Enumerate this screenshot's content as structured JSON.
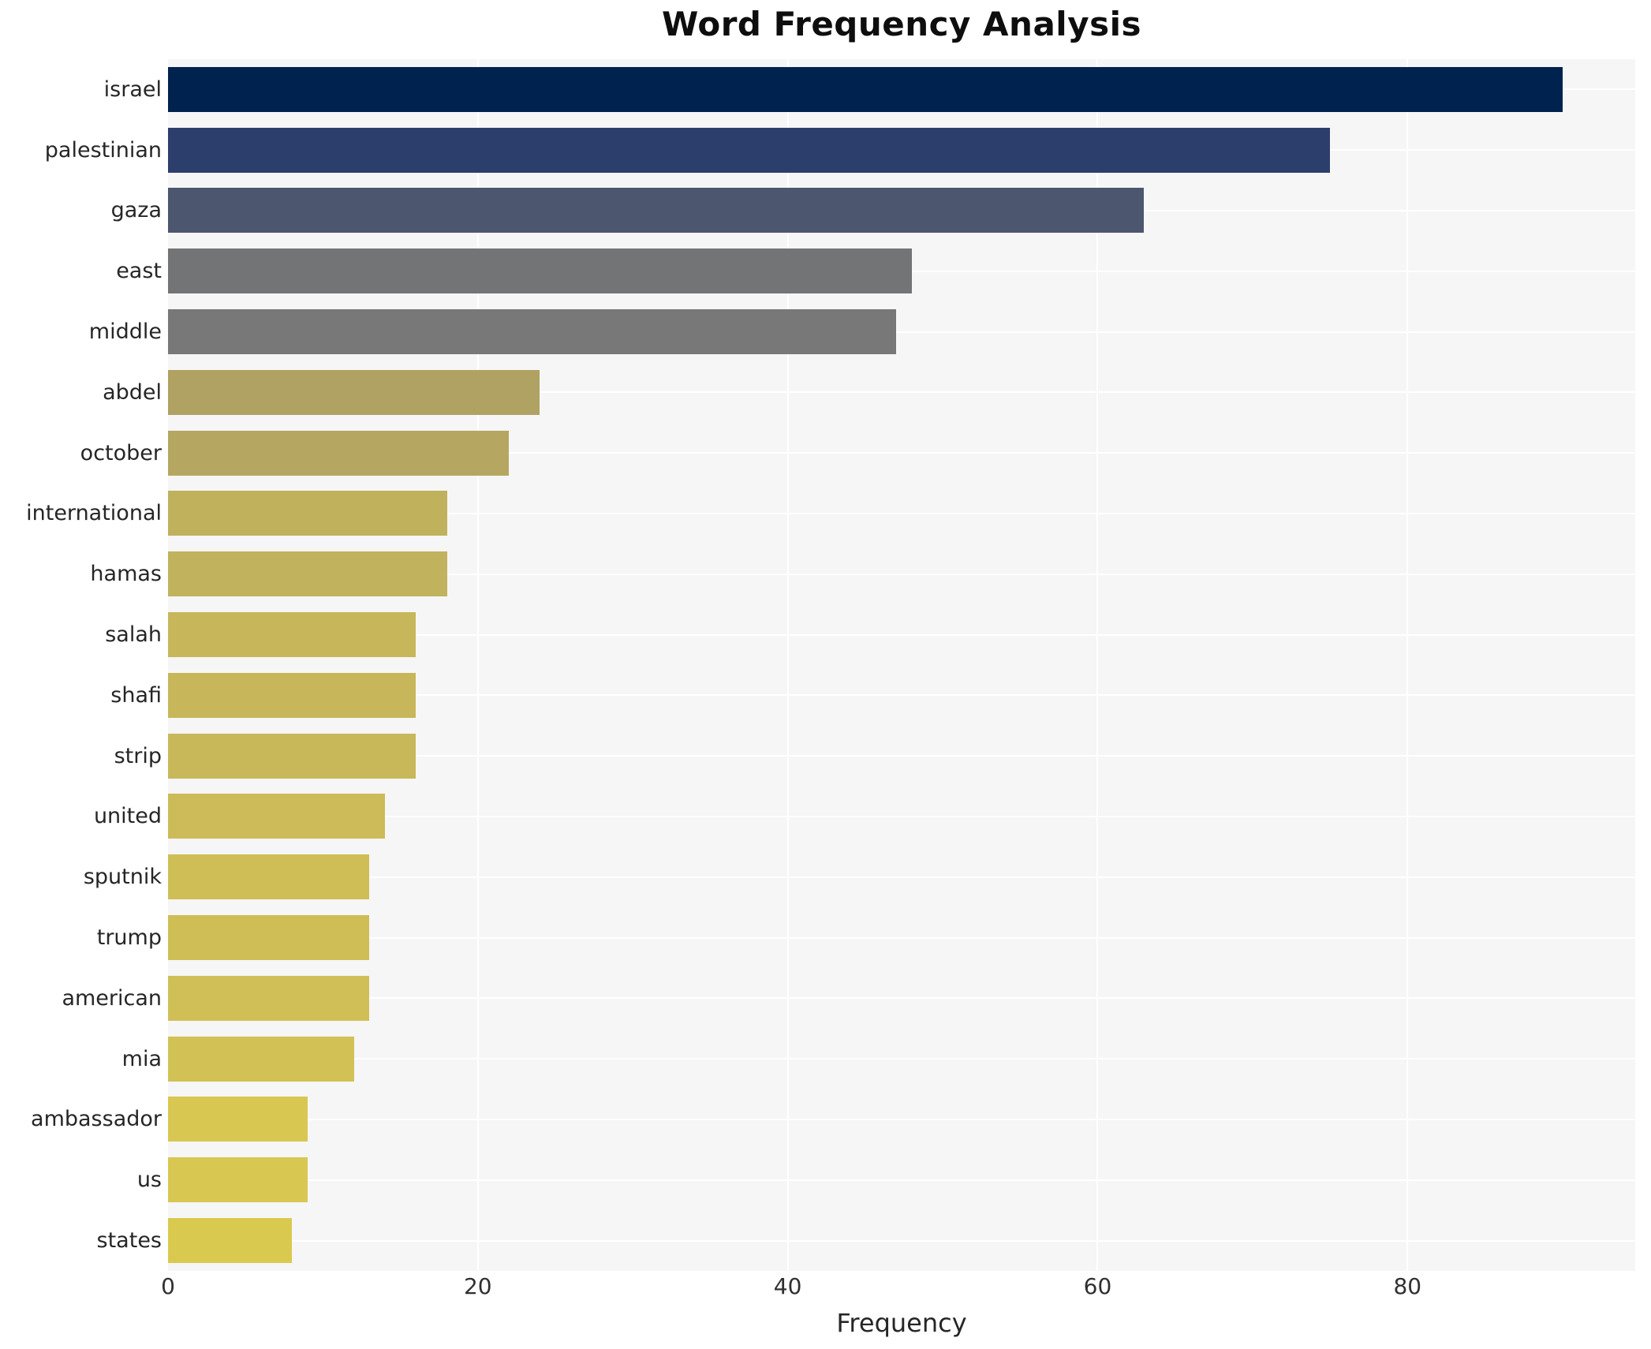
{
  "title": "Word Frequency Analysis",
  "chart_data": {
    "type": "bar",
    "orientation": "horizontal",
    "title": "Word Frequency Analysis",
    "xlabel": "Frequency",
    "ylabel": "",
    "xlim": [
      0,
      94.7
    ],
    "xticks": [
      0,
      20,
      40,
      60,
      80
    ],
    "grid": true,
    "legend": false,
    "colormap": "cividis",
    "plot_bg_color": "#f6f6f7",
    "gridline_color": "#ffffff",
    "text_color": "#262626",
    "categories": [
      "israel",
      "palestinian",
      "gaza",
      "east",
      "middle",
      "abdel",
      "october",
      "international",
      "hamas",
      "salah",
      "shafi",
      "strip",
      "united",
      "sputnik",
      "trump",
      "american",
      "mia",
      "ambassador",
      "us",
      "states"
    ],
    "values": [
      90,
      75,
      63,
      48,
      47,
      24,
      22,
      18,
      18,
      16,
      16,
      16,
      14,
      13,
      13,
      13,
      12,
      9,
      9,
      8
    ],
    "bar_colors": [
      "#00224e",
      "#2c3e6c",
      "#4c566f",
      "#737476",
      "#777877",
      "#b0a262",
      "#b5a761",
      "#c0b15d",
      "#c1b25d",
      "#c7b75a",
      "#c7b75a",
      "#c8b85a",
      "#ccbb58",
      "#cfbe56",
      "#cfbe56",
      "#d0bf56",
      "#d2c155",
      "#d8c751",
      "#d8c751",
      "#dac94f"
    ]
  }
}
